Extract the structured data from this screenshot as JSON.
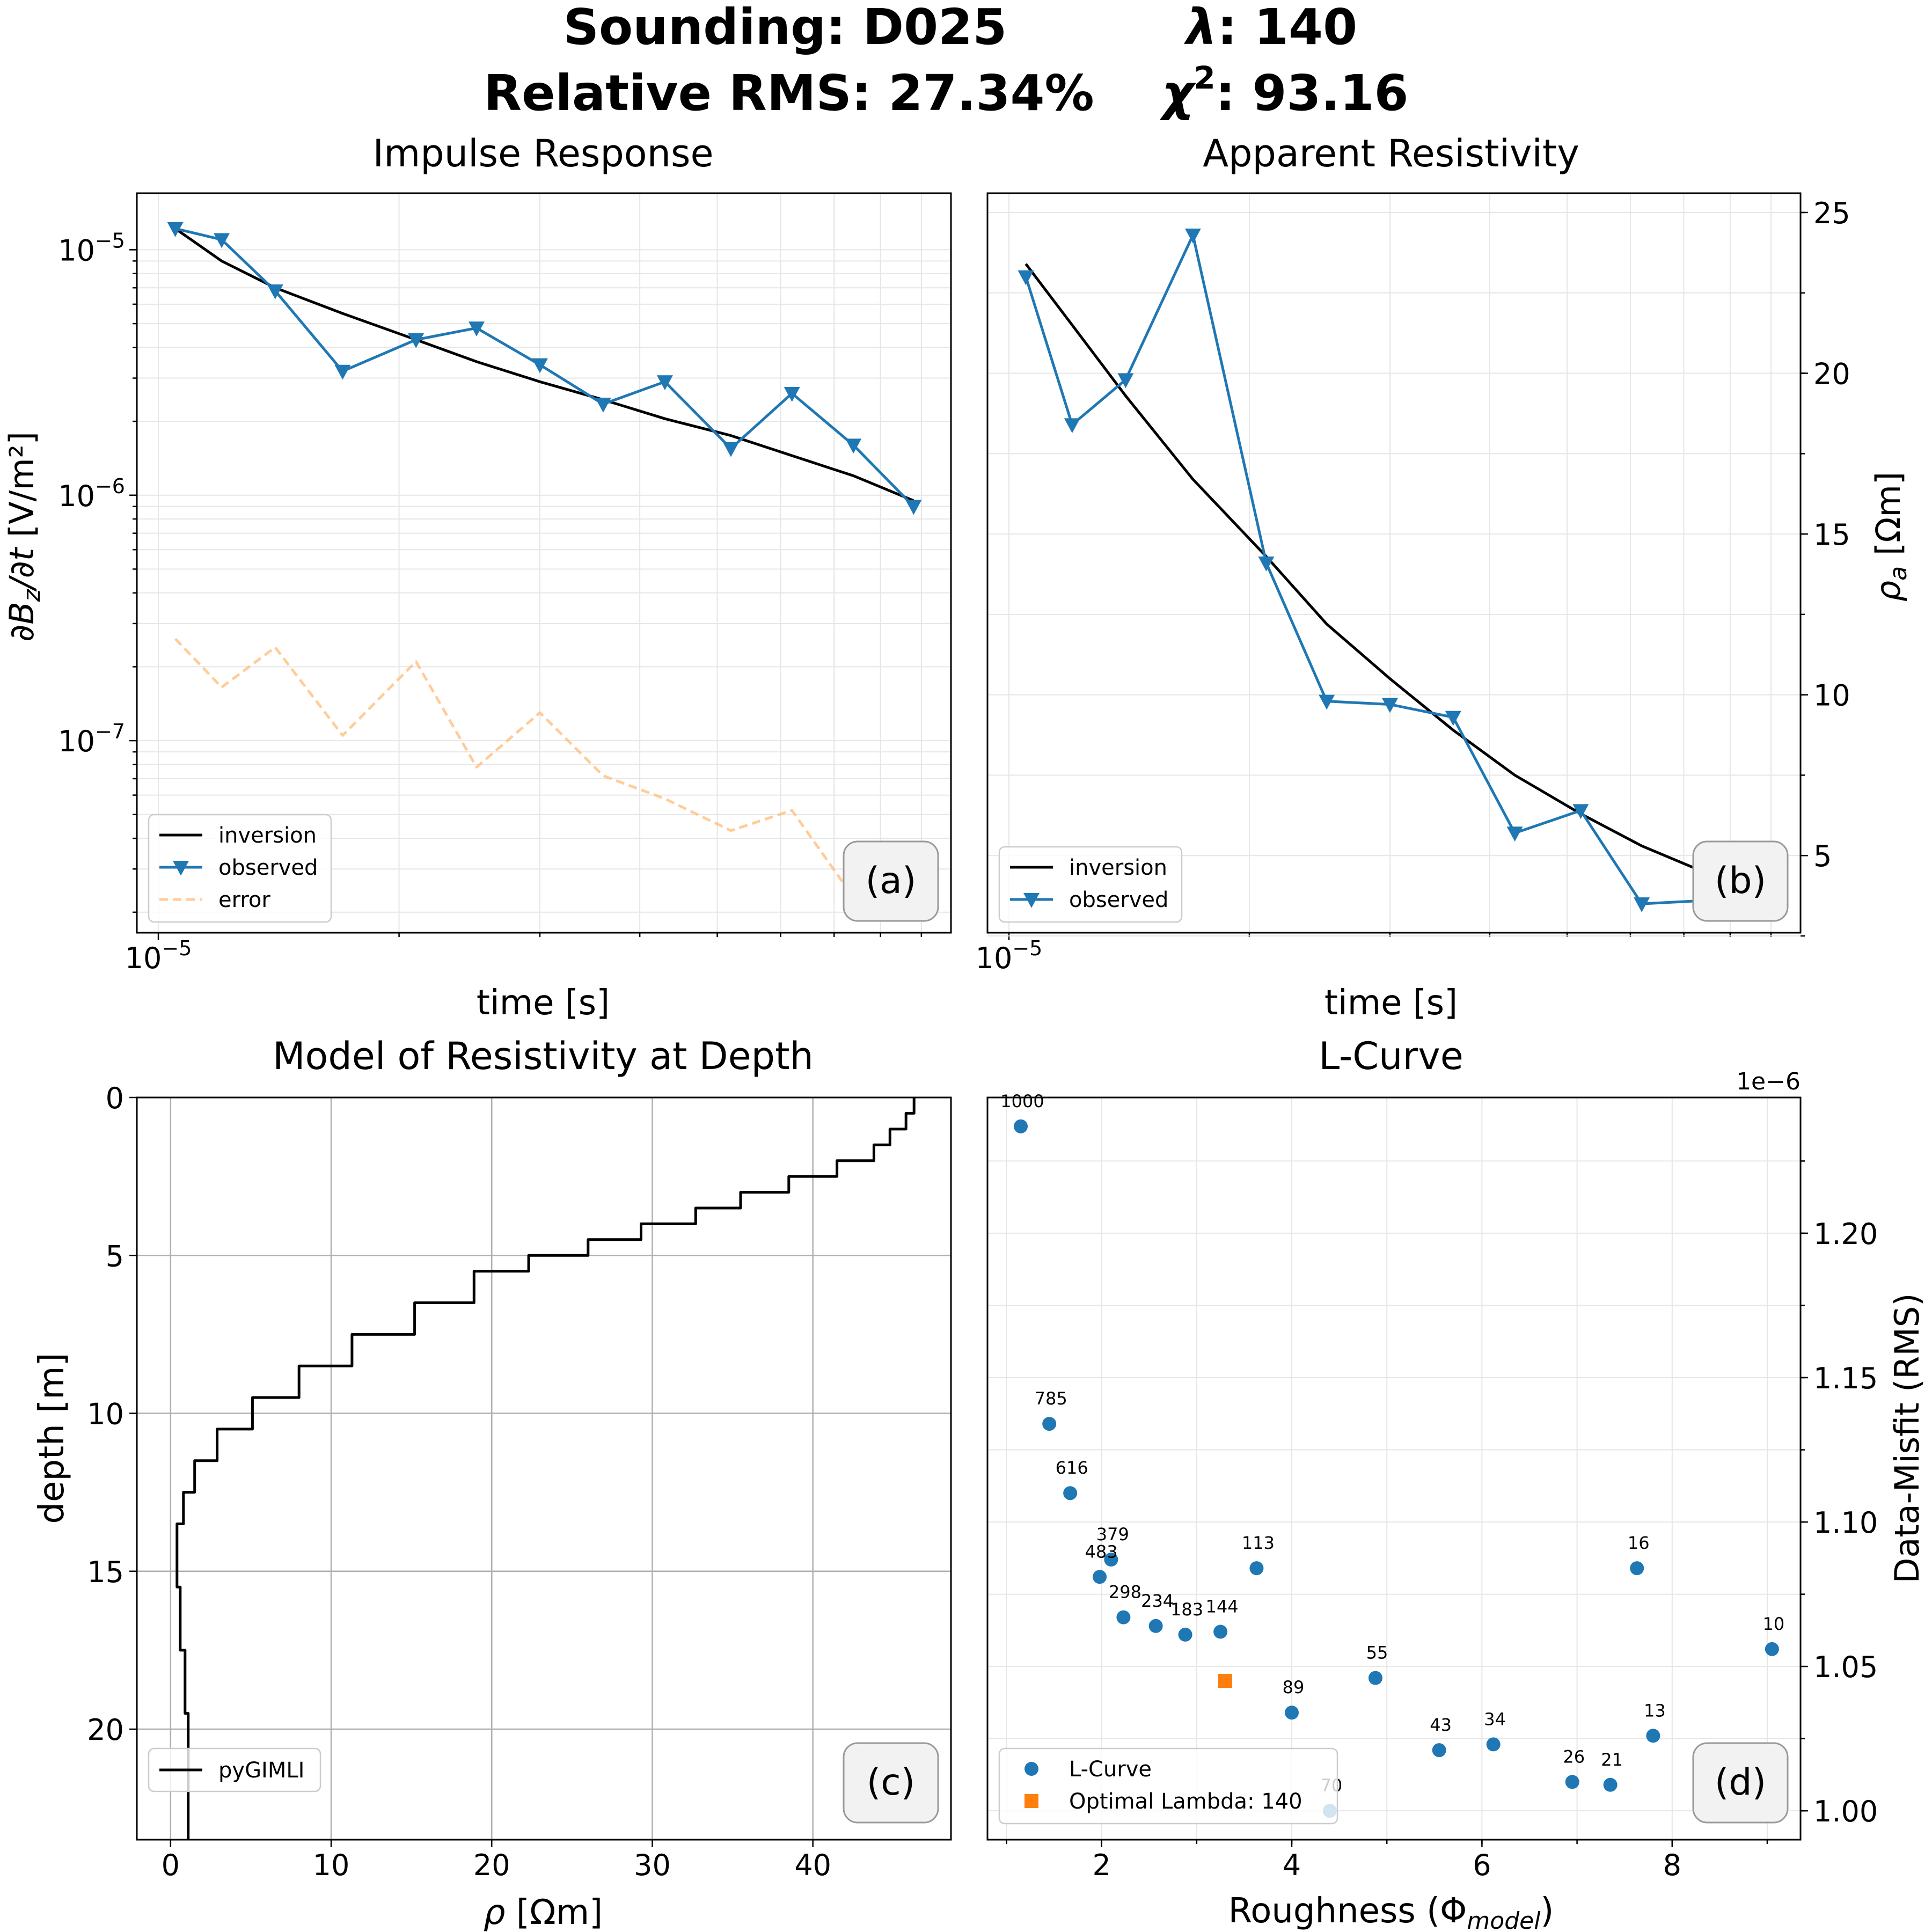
{
  "suptitle": {
    "line1_left": "Sounding: D025",
    "line1_right_symbol": "λ",
    "line1_right_value": ": 140",
    "line2_left": "Relative RMS: 27.34%",
    "line2_right_symbol": "χ",
    "line2_right_sup": "2",
    "line2_right_value": ": 93.16"
  },
  "chart_data": [
    {
      "id": "a",
      "type": "line",
      "title": "Impulse Response",
      "xlabel": "time [s]",
      "ylabel": "∂Bz/∂t [V/m²]",
      "xscale": "log",
      "yscale": "log",
      "xlim": [
        9.4e-06,
        9.8e-05
      ],
      "ylim": [
        1.65e-08,
        1.7e-05
      ],
      "x_ticks": [
        {
          "value": 1e-05,
          "label": "10",
          "exp": "−5"
        }
      ],
      "y_ticks": [
        {
          "value": 1e-05,
          "label": "10",
          "exp": "−5"
        },
        {
          "value": 1e-06,
          "label": "10",
          "exp": "−6"
        },
        {
          "value": 1e-07,
          "label": "10",
          "exp": "−7"
        }
      ],
      "grid": true,
      "legend_position": "lower-left",
      "panel_label": "(a)",
      "series": [
        {
          "name": "inversion",
          "color": "#000000",
          "style": "solid",
          "x": [
            1.05e-05,
            1.2e-05,
            1.4e-05,
            1.7e-05,
            2.1e-05,
            2.5e-05,
            3e-05,
            3.6e-05,
            4.3e-05,
            5.2e-05,
            6.2e-05,
            7.4e-05,
            8.8e-05
          ],
          "y": [
            1.22e-05,
            9e-06,
            7e-06,
            5.5e-06,
            4.3e-06,
            3.5e-06,
            2.9e-06,
            2.45e-06,
            2.05e-06,
            1.75e-06,
            1.45e-06,
            1.2e-06,
            9.5e-07
          ]
        },
        {
          "name": "observed",
          "color": "#1f77b4",
          "style": "solid-marker-triangle-down",
          "x": [
            1.05e-05,
            1.2e-05,
            1.4e-05,
            1.7e-05,
            2.1e-05,
            2.5e-05,
            3e-05,
            3.6e-05,
            4.3e-05,
            5.2e-05,
            6.2e-05,
            7.4e-05,
            8.8e-05
          ],
          "y": [
            1.22e-05,
            1.1e-05,
            6.8e-06,
            3.2e-06,
            4.3e-06,
            4.8e-06,
            3.4e-06,
            2.35e-06,
            2.9e-06,
            1.55e-06,
            2.6e-06,
            1.6e-06,
            9e-07
          ]
        },
        {
          "name": "error",
          "color": "#ffbb78",
          "style": "dashed",
          "x": [
            1.05e-05,
            1.2e-05,
            1.4e-05,
            1.7e-05,
            2.1e-05,
            2.5e-05,
            3e-05,
            3.6e-05,
            4.3e-05,
            5.2e-05,
            6.2e-05,
            7.4e-05,
            8.8e-05
          ],
          "y": [
            2.6e-07,
            1.65e-07,
            2.4e-07,
            1.05e-07,
            2.1e-07,
            7.8e-08,
            1.3e-07,
            7.2e-08,
            5.8e-08,
            4.3e-08,
            5.2e-08,
            2.3e-08,
            3.8e-08
          ]
        }
      ]
    },
    {
      "id": "b",
      "type": "line",
      "title": "Apparent Resistivity",
      "xlabel": "time [s]",
      "ylabel": "ρa [Ωm]",
      "ylabel_main": "ρ",
      "ylabel_sub": "a",
      "ylabel_unit": " [Ωm]",
      "xscale": "log",
      "yscale": "linear",
      "yaxis_side": "right",
      "xlim": [
        9.4e-06,
        9.8e-05
      ],
      "ylim": [
        2.6,
        25.6
      ],
      "x_ticks": [
        {
          "value": 1e-05,
          "label": "10",
          "exp": "−5"
        }
      ],
      "y_ticks": [
        5,
        10,
        15,
        20,
        25
      ],
      "grid": true,
      "legend_position": "lower-left",
      "panel_label": "(b)",
      "series": [
        {
          "name": "inversion",
          "color": "#000000",
          "style": "solid",
          "x": [
            1.05e-05,
            1.2e-05,
            1.4e-05,
            1.7e-05,
            2.1e-05,
            2.5e-05,
            3e-05,
            3.6e-05,
            4.3e-05,
            5.2e-05,
            6.2e-05,
            7.4e-05,
            8.8e-05
          ],
          "y": [
            23.4,
            21.5,
            19.3,
            16.7,
            14.3,
            12.2,
            10.5,
            8.9,
            7.5,
            6.3,
            5.3,
            4.5,
            3.9
          ]
        },
        {
          "name": "observed",
          "color": "#1f77b4",
          "style": "solid-marker-triangle-down",
          "x": [
            1.05e-05,
            1.2e-05,
            1.4e-05,
            1.7e-05,
            2.1e-05,
            2.5e-05,
            3e-05,
            3.6e-05,
            4.3e-05,
            5.2e-05,
            6.2e-05,
            7.4e-05,
            8.8e-05
          ],
          "y": [
            23.0,
            18.4,
            19.8,
            24.3,
            14.1,
            9.8,
            9.7,
            9.3,
            5.7,
            6.4,
            3.5,
            3.6,
            3.7
          ]
        }
      ]
    },
    {
      "id": "c",
      "type": "line",
      "title": "Model of Resistivity at Depth",
      "xlabel": "ρ [Ωm]",
      "xlabel_main": "ρ",
      "xlabel_unit": " [Ωm]",
      "ylabel": "depth [m]",
      "xscale": "linear",
      "yscale": "linear",
      "y_inverted": true,
      "xlim": [
        -2.1,
        48.6
      ],
      "ylim": [
        0,
        23.5
      ],
      "x_ticks": [
        0,
        10,
        20,
        30,
        40
      ],
      "y_ticks": [
        0,
        5,
        10,
        15,
        20
      ],
      "grid": true,
      "legend_position": "lower-left",
      "panel_label": "(c)",
      "series": [
        {
          "name": "pyGIMLI",
          "color": "#000000",
          "style": "step",
          "depth_tops": [
            0,
            0.5,
            1.0,
            1.5,
            2.0,
            2.5,
            3.0,
            3.5,
            4.0,
            4.5,
            5.0,
            5.5,
            6.5,
            7.5,
            8.5,
            9.5,
            10.5,
            11.5,
            12.5,
            13.5,
            15.5,
            17.5,
            19.5,
            23.5
          ],
          "resistivity": [
            46.3,
            45.8,
            44.8,
            43.8,
            41.5,
            38.5,
            35.5,
            32.7,
            29.3,
            26.0,
            22.3,
            18.9,
            15.2,
            11.3,
            8.0,
            5.1,
            2.9,
            1.5,
            0.8,
            0.4,
            0.6,
            0.9,
            1.1
          ]
        }
      ]
    },
    {
      "id": "d",
      "type": "scatter",
      "title": "L-Curve",
      "xlabel": "Roughness (Φmodel)",
      "xlabel_main": "Roughness (Φ",
      "xlabel_sub": "model",
      "xlabel_close": ")",
      "ylabel": "Data-Misfit (RMS)",
      "offset_text": "1e−6",
      "yaxis_side": "right",
      "xscale": "linear",
      "yscale": "linear",
      "xlim": [
        0.8,
        9.35
      ],
      "ylim": [
        0.99,
        1.247
      ],
      "x_ticks": [
        2,
        4,
        6,
        8
      ],
      "y_ticks": [
        1.0,
        1.05,
        1.1,
        1.15,
        1.2
      ],
      "y_tick_labels": [
        "1.00",
        "1.05",
        "1.10",
        "1.15",
        "1.20"
      ],
      "grid": true,
      "legend_position": "lower-left",
      "panel_label": "(d)",
      "series": [
        {
          "name": "L-Curve",
          "color": "#1f77b4",
          "marker": "circle",
          "points": [
            {
              "x": 1.15,
              "y": 1.237,
              "label": "1000"
            },
            {
              "x": 1.45,
              "y": 1.134,
              "label": "785"
            },
            {
              "x": 1.67,
              "y": 1.11,
              "label": "616"
            },
            {
              "x": 2.1,
              "y": 1.087,
              "label": "379"
            },
            {
              "x": 1.98,
              "y": 1.081,
              "label": "483"
            },
            {
              "x": 2.23,
              "y": 1.067,
              "label": "298"
            },
            {
              "x": 2.57,
              "y": 1.064,
              "label": "234"
            },
            {
              "x": 2.88,
              "y": 1.061,
              "label": "183"
            },
            {
              "x": 3.25,
              "y": 1.062,
              "label": "144"
            },
            {
              "x": 3.63,
              "y": 1.084,
              "label": "113"
            },
            {
              "x": 4.0,
              "y": 1.034,
              "label": "89"
            },
            {
              "x": 4.88,
              "y": 1.046,
              "label": "55"
            },
            {
              "x": 4.4,
              "y": 1.0,
              "label": "70"
            },
            {
              "x": 5.55,
              "y": 1.021,
              "label": "43"
            },
            {
              "x": 6.12,
              "y": 1.023,
              "label": "34"
            },
            {
              "x": 6.95,
              "y": 1.01,
              "label": "26"
            },
            {
              "x": 7.35,
              "y": 1.009,
              "label": "21"
            },
            {
              "x": 7.8,
              "y": 1.026,
              "label": "13"
            },
            {
              "x": 7.63,
              "y": 1.084,
              "label": "16"
            },
            {
              "x": 9.05,
              "y": 1.056,
              "label": "10"
            }
          ]
        },
        {
          "name": "Optimal Lambda: 140",
          "color": "#ff7f0e",
          "marker": "square",
          "points": [
            {
              "x": 3.3,
              "y": 1.045
            }
          ]
        }
      ]
    }
  ]
}
